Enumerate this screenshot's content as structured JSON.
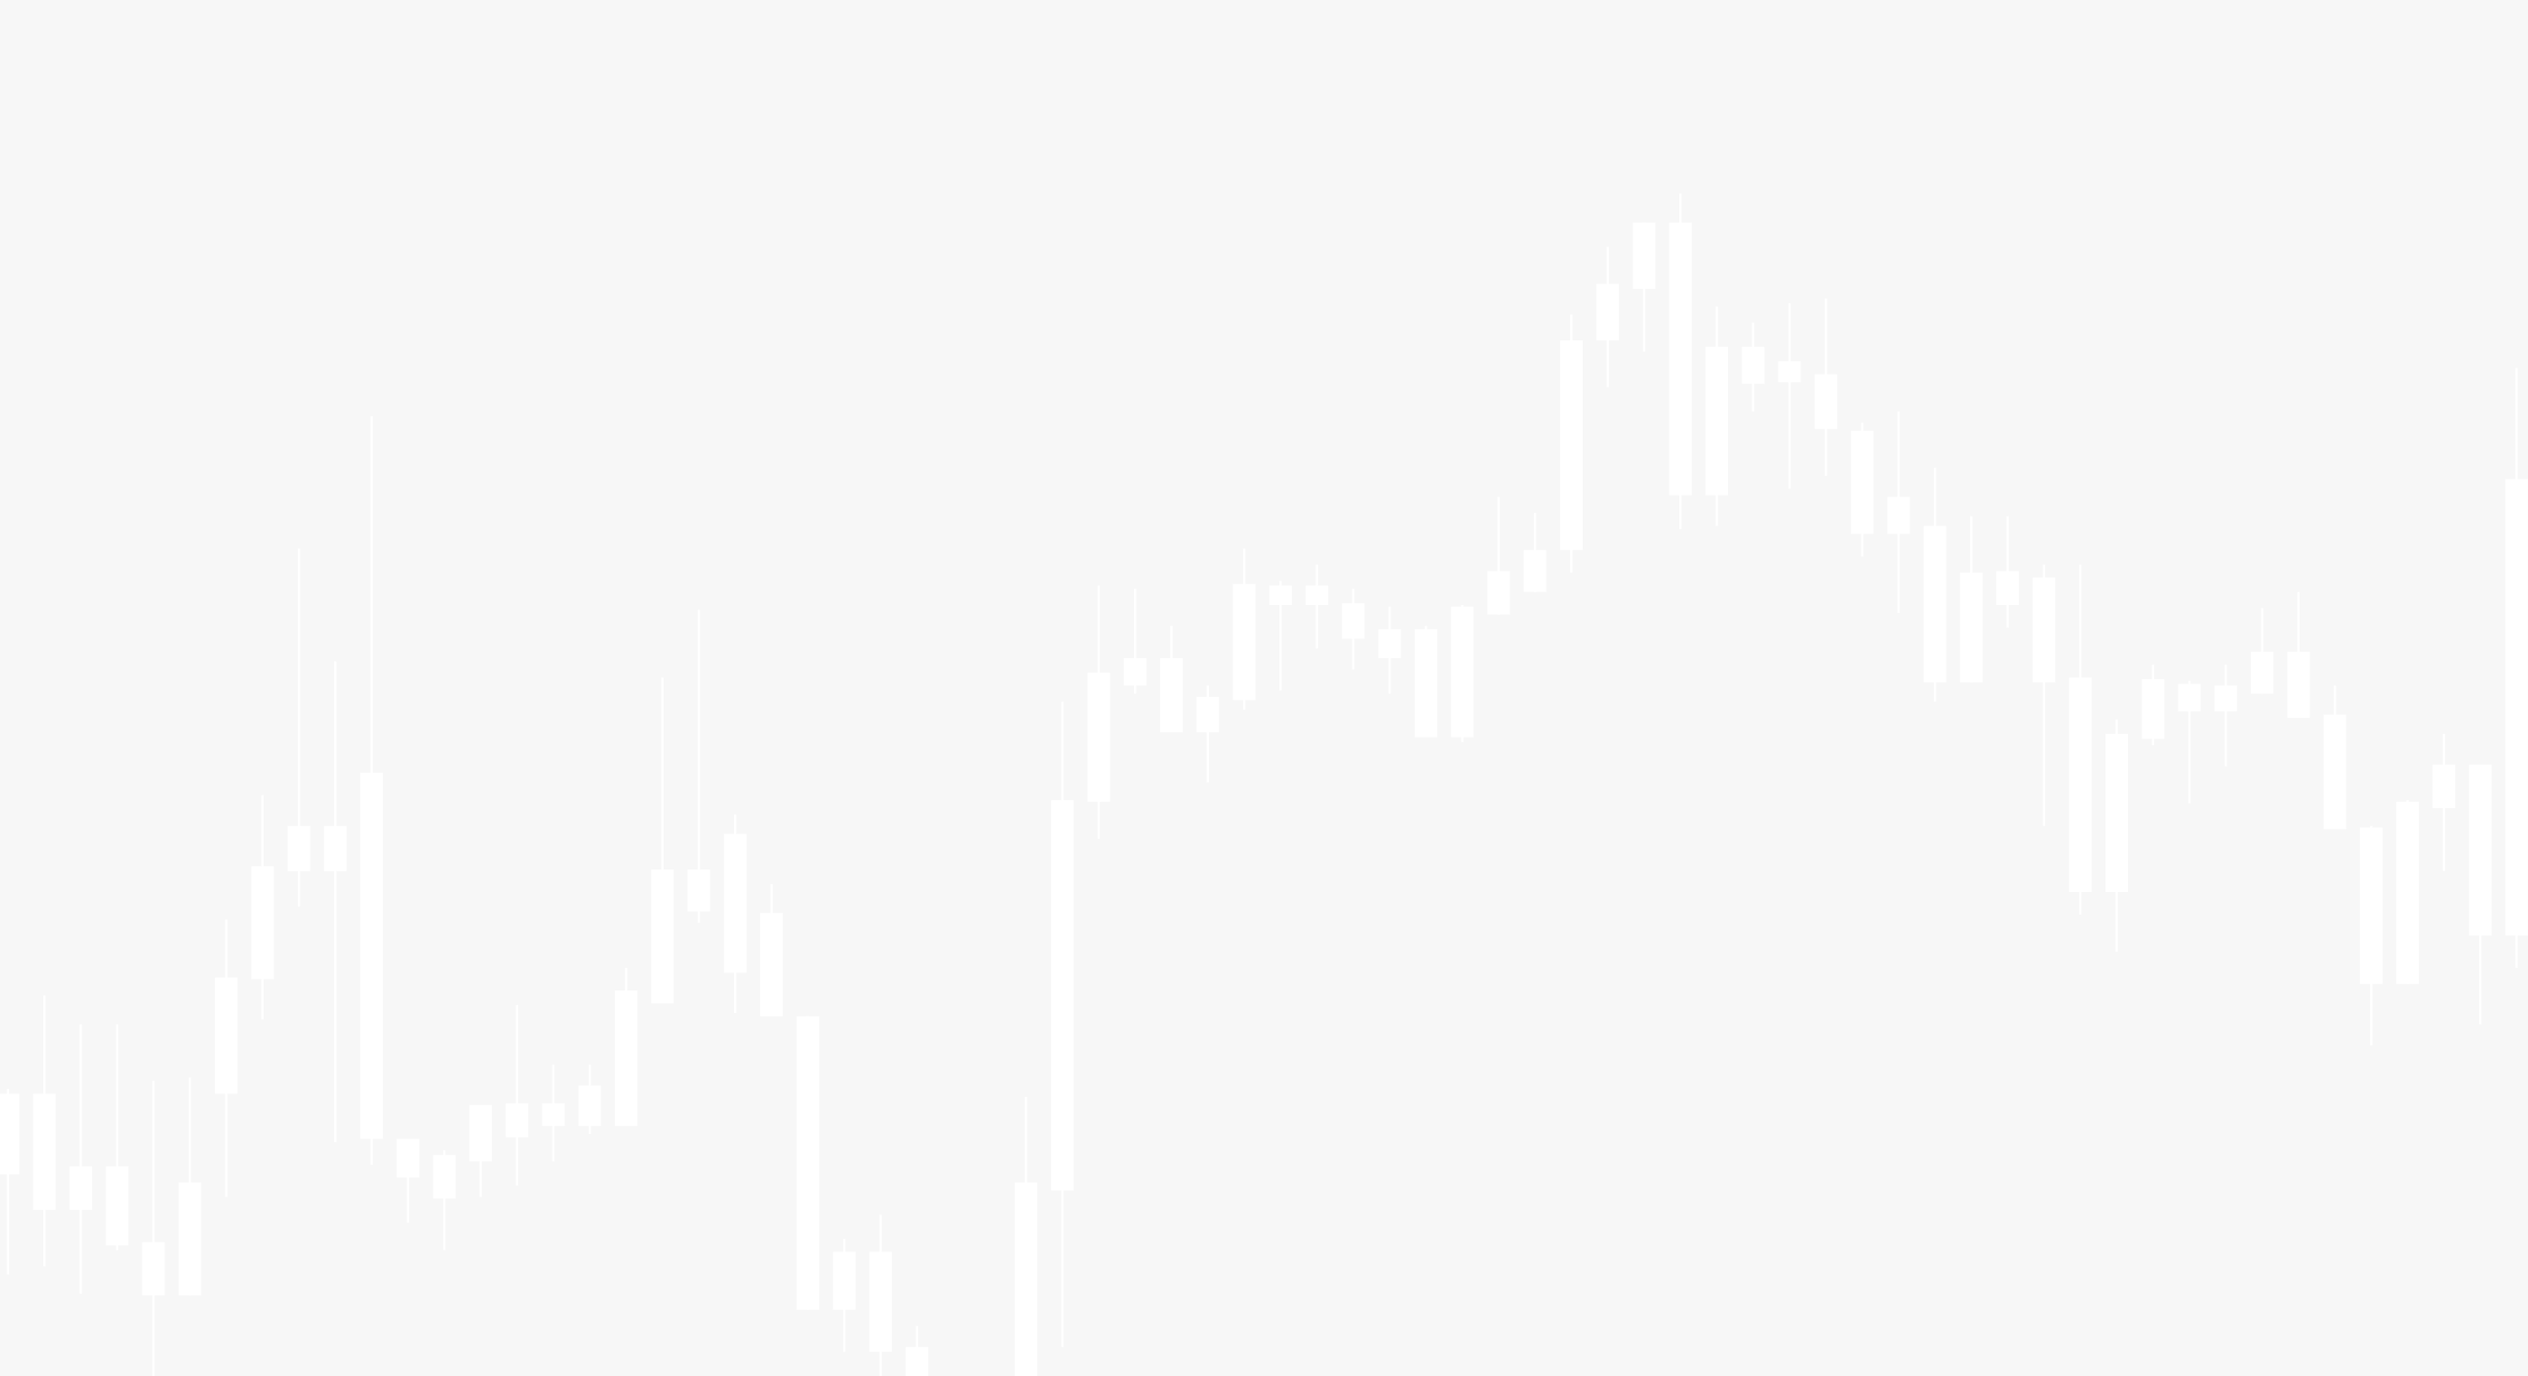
{
  "chart_data": {
    "type": "candlestick",
    "color": "#ffffff",
    "background": "#f7f7f7",
    "ylim": [
      0,
      853
    ],
    "open": [
      125,
      103,
      103,
      81,
      50,
      50,
      175,
      246,
      313,
      313,
      147,
      123,
      110,
      133,
      148,
      155,
      155,
      155,
      231,
      288,
      250,
      223,
      41,
      41,
      15,
      0,
      null,
      null,
      0,
      115,
      356,
      428,
      399,
      399,
      419,
      478,
      478,
      457,
      445,
      396,
      396,
      472,
      486,
      512,
      642,
      674,
      546,
      546,
      615,
      616,
      587,
      522,
      522,
      430,
      430,
      478,
      430,
      300,
      300,
      395,
      412,
      412,
      423,
      408,
      339,
      243,
      243,
      352,
      273,
      273
    ],
    "high": [
      178,
      236,
      218,
      218,
      183,
      185,
      283,
      360,
      513,
      443,
      595,
      147,
      140,
      168,
      230,
      193,
      193,
      253,
      433,
      475,
      348,
      305,
      223,
      85,
      100,
      31,
      null,
      null,
      173,
      418,
      490,
      488,
      465,
      428,
      513,
      493,
      503,
      488,
      477,
      465,
      478,
      545,
      535,
      658,
      700,
      715,
      733,
      663,
      653,
      665,
      668,
      591,
      598,
      563,
      533,
      533,
      503,
      503,
      407,
      441,
      431,
      441,
      476,
      486,
      428,
      341,
      357,
      398,
      379,
      625
    ],
    "low": [
      63,
      68,
      51,
      78,
      0,
      50,
      111,
      221,
      291,
      145,
      131,
      95,
      78,
      111,
      118,
      133,
      150,
      155,
      231,
      281,
      225,
      223,
      41,
      15,
      0,
      0,
      null,
      null,
      0,
      18,
      333,
      423,
      399,
      368,
      413,
      425,
      451,
      438,
      423,
      396,
      393,
      472,
      486,
      498,
      613,
      635,
      525,
      527,
      598,
      550,
      558,
      508,
      473,
      418,
      430,
      464,
      341,
      286,
      263,
      391,
      355,
      378,
      423,
      408,
      339,
      205,
      243,
      313,
      218,
      253
    ],
    "close": [
      175,
      175,
      130,
      130,
      83,
      120,
      247,
      316,
      341,
      341,
      374,
      147,
      137,
      168,
      169,
      169,
      180,
      239,
      314,
      314,
      336,
      287,
      223,
      77,
      77,
      18,
      null,
      null,
      120,
      357,
      436,
      445,
      445,
      421,
      491,
      490,
      490,
      479,
      463,
      463,
      477,
      499,
      512,
      642,
      677,
      715,
      715,
      638,
      638,
      629,
      621,
      586,
      545,
      527,
      498,
      499,
      495,
      433,
      398,
      432,
      429,
      428,
      449,
      449,
      410,
      340,
      356,
      379,
      379,
      556
    ]
  }
}
